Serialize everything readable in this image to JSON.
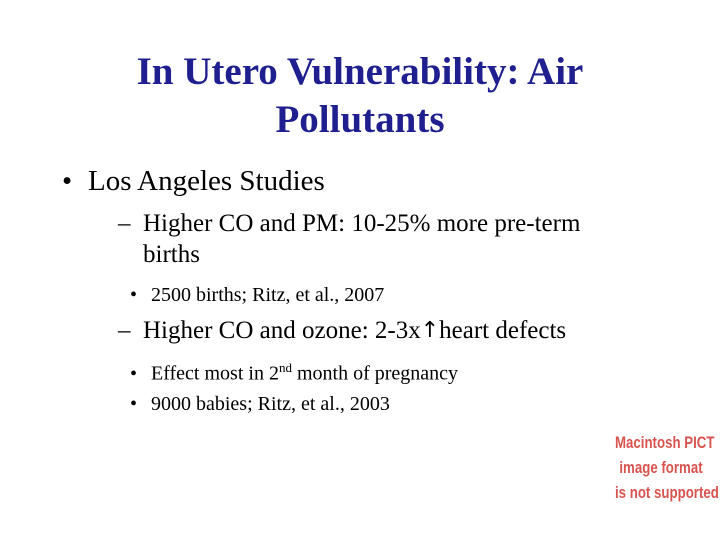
{
  "slide": {
    "title_line1": "In Utero Vulnerability: Air",
    "title_line2": "Pollutants",
    "title_color": "#1f1f8f",
    "bullet_marker": "•",
    "dash_marker": "–",
    "bullets": [
      {
        "text": "Los Angeles Studies",
        "subitems": [
          {
            "text_line1": "Higher CO and PM: 10-25% more pre-term",
            "text_line2": "births",
            "details": [
              {
                "text": "2500 births; Ritz, et al., 2007"
              }
            ]
          },
          {
            "text_before_arrow": "Higher CO and ozone: 2-3x",
            "arrow_icon": "up-arrow-icon",
            "arrow_glyph": "↑",
            "text_after_arrow": "heart defects",
            "details": [
              {
                "text_before_sup": "Effect most in 2",
                "sup": "nd",
                "text_after_sup": " month of pregnancy"
              },
              {
                "text": "9000 babies; Ritz, et al., 2003"
              }
            ]
          }
        ]
      }
    ],
    "image_placeholder": {
      "line1": "Macintosh PICT",
      "line2": "image format",
      "line3": "is not supported",
      "color": "#d9534f"
    }
  }
}
